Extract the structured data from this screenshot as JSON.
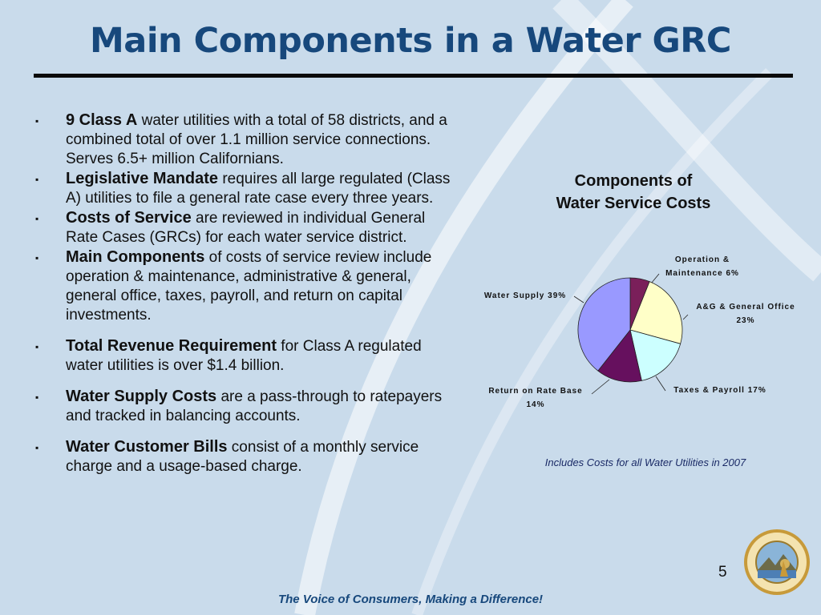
{
  "title": "Main Components in a Water GRC",
  "bullets": [
    {
      "bold": "9 Class A",
      "rest": " water utilities with a total of 58 districts, and a combined total of over 1.1 million service connections.  Serves  6.5+ million Californians."
    },
    {
      "bold": "Legislative Mandate",
      "rest": " requires all large regulated (Class A) utilities to file a general rate case every three years."
    },
    {
      "bold": "Costs of Service",
      "rest": " are reviewed in individual General Rate Cases (GRCs) for each water service district."
    },
    {
      "bold": "Main Components",
      "rest": " of costs of service review include operation & maintenance, administrative & general, general office, taxes, payroll, and return on capital investments."
    },
    {
      "bold": "Total Revenue Requirement",
      "rest": " for Class A regulated water utilities is over $1.4 billion."
    },
    {
      "bold": "Water Supply Costs",
      "rest": " are a pass-through to ratepayers and tracked in balancing accounts."
    },
    {
      "bold": "Water Customer Bills",
      "rest": " consist of a monthly service charge and a usage-based charge."
    }
  ],
  "bullet_marker": "▪",
  "chart_title_line1": "Components of",
  "chart_title_line2": "Water Service Costs",
  "chart_note": "Includes Costs for all Water Utilities in 2007",
  "chart_data": {
    "type": "pie",
    "title": "Components of Water Service Costs",
    "slices": [
      {
        "label_lines": [
          "Operation &",
          "Maintenance 6%"
        ],
        "value": 6,
        "color": "#7a1f5a"
      },
      {
        "label_lines": [
          "A&G & General Office",
          "23%"
        ],
        "value": 23,
        "color": "#ffffc8"
      },
      {
        "label_lines": [
          "Taxes & Payroll 17%"
        ],
        "value": 17,
        "color": "#ccffff"
      },
      {
        "label_lines": [
          "Return on Rate Base",
          "14%"
        ],
        "value": 14,
        "color": "#66105e"
      },
      {
        "label_lines": [
          "Water Supply 39%"
        ],
        "value": 39,
        "color": "#9999ff"
      }
    ]
  },
  "page_number": "5",
  "footer": "The Voice of Consumers, Making a Difference!",
  "colors": {
    "background": "#c9dbeb",
    "title": "#17487c",
    "footer": "#17487c"
  }
}
